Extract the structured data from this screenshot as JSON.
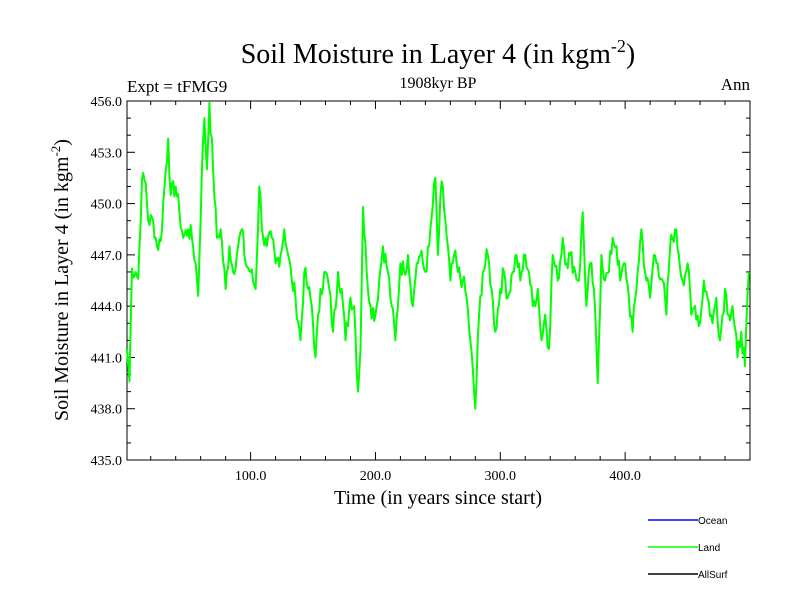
{
  "header": {
    "title_main": "Soil Moisture in Layer 4 (in kgm",
    "title_sup": "-2",
    "title_close": ")",
    "subtitle": "1908kyr BP",
    "left_label": "Expt = tFMG9",
    "right_label": "Ann"
  },
  "chart_data": {
    "type": "line",
    "title": "Soil Moisture in Layer 4 (in kgm-2)",
    "subtitle": "1908kyr BP",
    "xlabel": "Time (in years since start)",
    "ylabel_main": "Soil Moisture in Layer 4 (in kgm",
    "ylabel_sup": "-2",
    "ylabel_close": ")",
    "xlim": [
      1,
      500
    ],
    "ylim": [
      435.0,
      456.0
    ],
    "xticks": [
      100,
      200,
      300,
      400
    ],
    "xtick_labels": [
      "100.0",
      "200.0",
      "300.0",
      "400.0"
    ],
    "yticks": [
      435,
      438,
      441,
      444,
      447,
      450,
      453,
      456
    ],
    "ytick_labels": [
      "435.0",
      "438.0",
      "441.0",
      "444.0",
      "447.0",
      "450.0",
      "453.0",
      "456.0"
    ],
    "legend": [
      {
        "name": "Ocean",
        "color": "#0000ff"
      },
      {
        "name": "Land",
        "color": "#00ff00"
      },
      {
        "name": "AllSurf",
        "color": "#000000"
      }
    ],
    "series": [
      {
        "name": "Land",
        "color": "#00ff00",
        "keypoints": [
          [
            1,
            441.5
          ],
          [
            3,
            439.6
          ],
          [
            5,
            446.2
          ],
          [
            8,
            446.0
          ],
          [
            10,
            445.6
          ],
          [
            13,
            451.4
          ],
          [
            16,
            451.2
          ],
          [
            18,
            449.0
          ],
          [
            22,
            449.0
          ],
          [
            25,
            447.5
          ],
          [
            28,
            447.8
          ],
          [
            31,
            451.0
          ],
          [
            34,
            453.8
          ],
          [
            36,
            450.5
          ],
          [
            40,
            451.0
          ],
          [
            43,
            449.5
          ],
          [
            46,
            448.0
          ],
          [
            50,
            448.5
          ],
          [
            53,
            448.0
          ],
          [
            56,
            446.5
          ],
          [
            58,
            444.6
          ],
          [
            61,
            452.0
          ],
          [
            63,
            455.0
          ],
          [
            65,
            452.0
          ],
          [
            67,
            455.9
          ],
          [
            70,
            452.0
          ],
          [
            73,
            448.0
          ],
          [
            76,
            448.5
          ],
          [
            80,
            445.0
          ],
          [
            83,
            447.5
          ],
          [
            86,
            446.0
          ],
          [
            90,
            447.5
          ],
          [
            93,
            448.5
          ],
          [
            96,
            446.5
          ],
          [
            100,
            446.0
          ],
          [
            104,
            445.0
          ],
          [
            107,
            451.0
          ],
          [
            110,
            448.0
          ],
          [
            113,
            447.5
          ],
          [
            117,
            448.0
          ],
          [
            120,
            446.5
          ],
          [
            124,
            447.0
          ],
          [
            127,
            448.5
          ],
          [
            130,
            447.0
          ],
          [
            133,
            445.5
          ],
          [
            136,
            444.5
          ],
          [
            140,
            442.0
          ],
          [
            143,
            446.0
          ],
          [
            146,
            445.0
          ],
          [
            149,
            444.0
          ],
          [
            152,
            441.0
          ],
          [
            156,
            445.0
          ],
          [
            160,
            446.0
          ],
          [
            163,
            445.0
          ],
          [
            166,
            442.5
          ],
          [
            170,
            446.0
          ],
          [
            173,
            445.0
          ],
          [
            176,
            442.0
          ],
          [
            180,
            444.5
          ],
          [
            183,
            444.0
          ],
          [
            186,
            439.0
          ],
          [
            188,
            441.5
          ],
          [
            190,
            449.8
          ],
          [
            193,
            446.0
          ],
          [
            196,
            444.0
          ],
          [
            200,
            443.5
          ],
          [
            203,
            445.5
          ],
          [
            206,
            447.5
          ],
          [
            210,
            446.0
          ],
          [
            213,
            444.0
          ],
          [
            216,
            442.0
          ],
          [
            220,
            446.5
          ],
          [
            223,
            446.0
          ],
          [
            226,
            447.0
          ],
          [
            230,
            444.0
          ],
          [
            233,
            446.5
          ],
          [
            236,
            447.0
          ],
          [
            240,
            446.0
          ],
          [
            243,
            447.5
          ],
          [
            246,
            450.0
          ],
          [
            248,
            451.5
          ],
          [
            250,
            447.0
          ],
          [
            253,
            451.3
          ],
          [
            256,
            449.0
          ],
          [
            260,
            445.5
          ],
          [
            263,
            447.0
          ],
          [
            266,
            446.0
          ],
          [
            270,
            445.5
          ],
          [
            273,
            444.5
          ],
          [
            276,
            442.0
          ],
          [
            280,
            438.0
          ],
          [
            283,
            443.5
          ],
          [
            286,
            446.0
          ],
          [
            290,
            447.0
          ],
          [
            293,
            445.0
          ],
          [
            296,
            442.5
          ],
          [
            300,
            445.0
          ],
          [
            303,
            446.0
          ],
          [
            306,
            444.5
          ],
          [
            310,
            446.0
          ],
          [
            313,
            447.0
          ],
          [
            316,
            445.5
          ],
          [
            320,
            447.0
          ],
          [
            323,
            446.0
          ],
          [
            326,
            444.0
          ],
          [
            330,
            445.0
          ],
          [
            333,
            442.0
          ],
          [
            336,
            443.5
          ],
          [
            339,
            441.5
          ],
          [
            342,
            447.0
          ],
          [
            346,
            445.5
          ],
          [
            350,
            448.0
          ],
          [
            353,
            446.5
          ],
          [
            356,
            447.0
          ],
          [
            360,
            446.0
          ],
          [
            363,
            445.5
          ],
          [
            366,
            449.5
          ],
          [
            369,
            444.0
          ],
          [
            372,
            446.5
          ],
          [
            375,
            445.0
          ],
          [
            378,
            439.5
          ],
          [
            381,
            447.0
          ],
          [
            384,
            445.5
          ],
          [
            387,
            446.0
          ],
          [
            390,
            448.0
          ],
          [
            393,
            447.5
          ],
          [
            396,
            445.5
          ],
          [
            400,
            446.5
          ],
          [
            403,
            444.5
          ],
          [
            406,
            442.5
          ],
          [
            410,
            446.0
          ],
          [
            413,
            448.5
          ],
          [
            416,
            446.0
          ],
          [
            420,
            444.5
          ],
          [
            423,
            447.0
          ],
          [
            426,
            446.5
          ],
          [
            430,
            445.5
          ],
          [
            433,
            443.5
          ],
          [
            436,
            447.5
          ],
          [
            440,
            448.5
          ],
          [
            443,
            447.0
          ],
          [
            446,
            445.5
          ],
          [
            450,
            446.5
          ],
          [
            453,
            443.5
          ],
          [
            456,
            444.0
          ],
          [
            460,
            443.0
          ],
          [
            463,
            445.5
          ],
          [
            466,
            444.5
          ],
          [
            470,
            443.0
          ],
          [
            473,
            444.5
          ],
          [
            476,
            442.0
          ],
          [
            480,
            445.0
          ],
          [
            483,
            443.5
          ],
          [
            486,
            444.0
          ],
          [
            490,
            441.0
          ],
          [
            493,
            442.5
          ],
          [
            496,
            440.5
          ],
          [
            499,
            446.0
          ]
        ]
      }
    ]
  }
}
